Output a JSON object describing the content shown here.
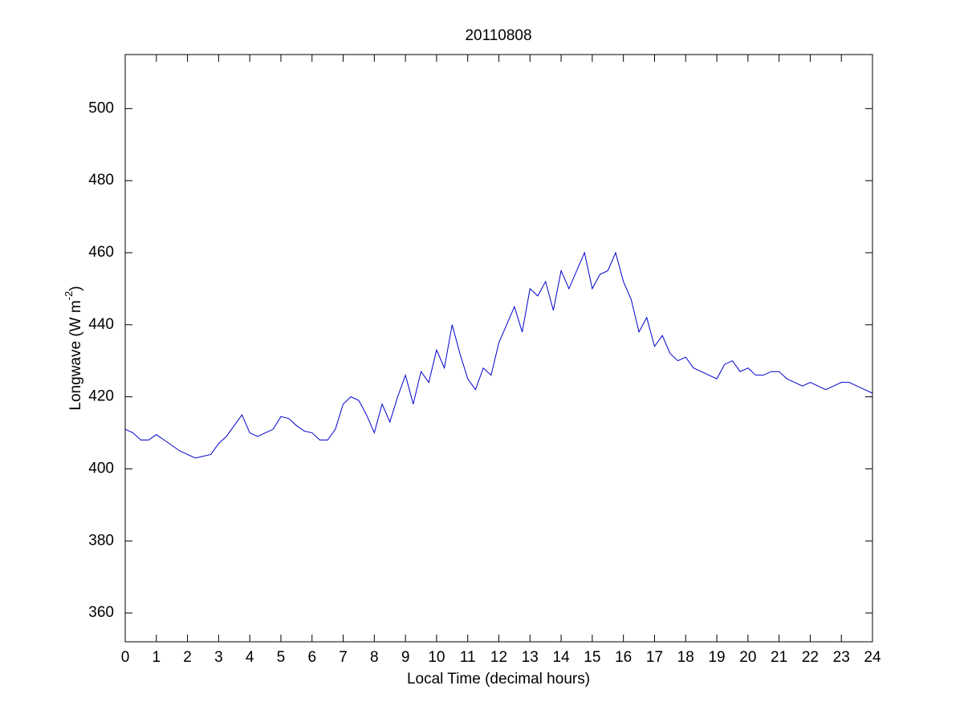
{
  "chart_data": {
    "type": "line",
    "title": "20110808",
    "xlabel": "Local Time (decimal hours)",
    "ylabel": [
      "Longwave (W m",
      "-2",
      ")"
    ],
    "xlim": [
      0,
      24
    ],
    "ylim": [
      352,
      515
    ],
    "xticks": [
      0,
      1,
      2,
      3,
      4,
      5,
      6,
      7,
      8,
      9,
      10,
      11,
      12,
      13,
      14,
      15,
      16,
      17,
      18,
      19,
      20,
      21,
      22,
      23,
      24
    ],
    "yticks": [
      360,
      380,
      400,
      420,
      440,
      460,
      480,
      500
    ],
    "x": [
      0,
      0.25,
      0.5,
      0.75,
      1,
      1.25,
      1.5,
      1.75,
      2,
      2.25,
      2.5,
      2.75,
      3,
      3.25,
      3.5,
      3.75,
      4,
      4.25,
      4.5,
      4.75,
      5,
      5.25,
      5.5,
      5.75,
      6,
      6.25,
      6.5,
      6.75,
      7,
      7.25,
      7.5,
      7.75,
      8,
      8.25,
      8.5,
      8.75,
      9,
      9.25,
      9.5,
      9.75,
      10,
      10.25,
      10.5,
      10.75,
      11,
      11.25,
      11.5,
      11.75,
      12,
      12.25,
      12.5,
      12.75,
      13,
      13.25,
      13.5,
      13.75,
      14,
      14.25,
      14.5,
      14.75,
      15,
      15.25,
      15.5,
      15.75,
      16,
      16.25,
      16.5,
      16.75,
      17,
      17.25,
      17.5,
      17.75,
      18,
      18.25,
      18.5,
      18.75,
      19,
      19.25,
      19.5,
      19.75,
      20,
      20.25,
      20.5,
      20.75,
      21,
      21.25,
      21.5,
      21.75,
      22,
      22.25,
      22.5,
      22.75,
      23,
      23.25,
      23.5,
      23.75,
      24
    ],
    "series": [
      {
        "color": "#0000cc",
        "values": [
          411,
          410,
          408,
          408,
          409.5,
          408,
          406.5,
          405,
          404,
          403,
          403.5,
          404,
          407,
          409,
          412,
          415,
          410,
          409,
          410,
          411,
          414.5,
          414,
          412,
          410.5,
          410,
          408,
          408,
          411,
          418,
          420,
          419,
          415,
          410,
          418,
          413,
          420,
          426,
          418,
          427,
          424,
          433,
          428,
          440,
          432,
          425,
          422,
          428,
          426,
          435,
          440,
          445,
          438,
          450,
          448,
          452,
          444,
          455,
          450,
          455,
          460,
          450,
          454,
          455,
          460,
          452,
          447,
          438,
          442,
          434,
          437,
          432,
          430,
          431,
          428,
          427,
          426,
          425,
          429,
          430,
          427,
          428,
          426,
          426,
          427,
          427,
          425,
          424,
          423,
          424,
          423,
          422,
          423,
          424,
          424,
          423,
          422,
          421
        ]
      }
    ]
  }
}
